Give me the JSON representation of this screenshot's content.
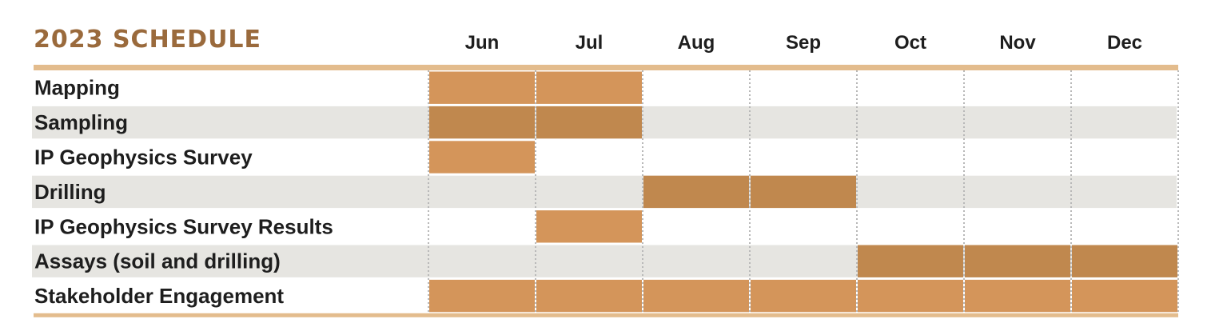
{
  "chart_data": {
    "type": "gantt",
    "title": "2023 SCHEDULE",
    "months": [
      "Jun",
      "Jul",
      "Aug",
      "Sep",
      "Oct",
      "Nov",
      "Dec"
    ],
    "tasks": [
      {
        "name": "Mapping",
        "start": "Jun",
        "end": "Jul"
      },
      {
        "name": "Sampling",
        "start": "Jun",
        "end": "Jul"
      },
      {
        "name": "IP Geophysics Survey",
        "start": "Jun",
        "end": "Jun"
      },
      {
        "name": "Drilling",
        "start": "Aug",
        "end": "Sep"
      },
      {
        "name": "IP Geophysics Survey Results",
        "start": "Jul",
        "end": "Jul"
      },
      {
        "name": "Assays (soil and drilling)",
        "start": "Oct",
        "end": "Dec"
      },
      {
        "name": "Stakeholder Engagement",
        "start": "Jun",
        "end": "Dec"
      }
    ]
  },
  "colors": {
    "title": "#9a6a3c",
    "rule": "#e3bc8d",
    "bar_on_white": "#d4955a",
    "bar_on_grey": "#c0884e",
    "row_stripe": "#e6e5e1",
    "divider": "#b8b8b8"
  }
}
